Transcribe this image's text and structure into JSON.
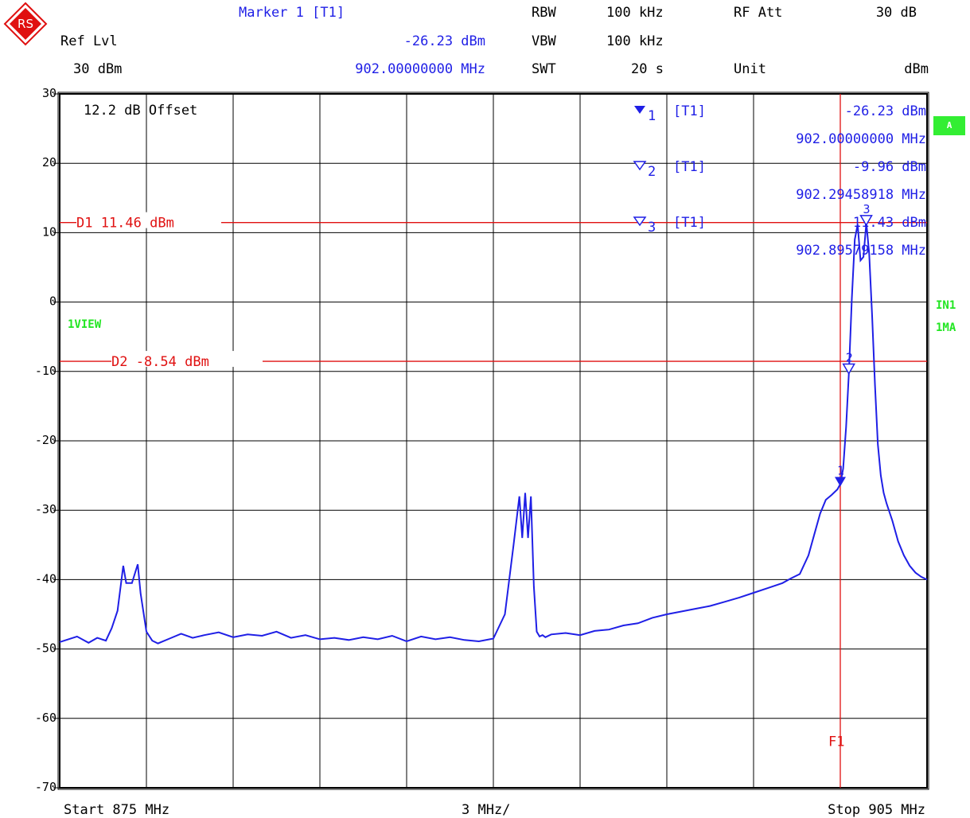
{
  "header": {
    "marker_title": "Marker 1 [T1]",
    "ref_lvl_label": "Ref Lvl",
    "marker_level": "-26.23 dBm",
    "ref_lvl_value": "30 dBm",
    "marker_freq": "902.00000000 MHz",
    "rbw_label": "RBW",
    "rbw_value": "100 kHz",
    "vbw_label": "VBW",
    "vbw_value": "100 kHz",
    "swt_label": "SWT",
    "swt_value": "20 s",
    "rf_att_label": "RF Att",
    "rf_att_value": "30 dB",
    "unit_label": "Unit",
    "unit_value": "dBm"
  },
  "side": {
    "a_badge": "A",
    "in1": "IN1",
    "ma1": "1MA",
    "view": "1VIEW"
  },
  "annotations": {
    "offset": "12.2 dB Offset",
    "d1": "D1 11.46 dBm",
    "d2": "D2 -8.54 dBm",
    "f1": "F1"
  },
  "marker_table": [
    {
      "num": "1",
      "trace": "[T1]",
      "level": "-26.23 dBm",
      "freq": "902.00000000 MHz"
    },
    {
      "num": "2",
      "trace": "[T1]",
      "level": "-9.96 dBm",
      "freq": "902.29458918 MHz"
    },
    {
      "num": "3",
      "trace": "[T1]",
      "level": "11.43 dBm",
      "freq": "902.89579158 MHz"
    }
  ],
  "footer": {
    "start": "Start 875 MHz",
    "div": "3 MHz/",
    "stop": "Stop 905 MHz"
  },
  "colors": {
    "trace": "#1f1fe6",
    "lines": "#e01010",
    "grid": "#000000",
    "status": "#22e622"
  },
  "chart_data": {
    "type": "line",
    "x_unit": "MHz",
    "y_unit": "dBm",
    "xlim": [
      875,
      905
    ],
    "ylim": [
      -70,
      30
    ],
    "yticks": [
      30,
      20,
      10,
      0,
      -10,
      -20,
      -30,
      -40,
      -50,
      -60,
      -70
    ],
    "grid": true,
    "hlines": [
      {
        "name": "D1",
        "value": 11.46
      },
      {
        "name": "D2",
        "value": -8.54
      }
    ],
    "vlines": [
      {
        "name": "F1",
        "value": 902.0
      }
    ],
    "markers": [
      {
        "id": "1",
        "x": 902.0,
        "y": -26.23,
        "filled": true
      },
      {
        "id": "2",
        "x": 902.29458918,
        "y": -9.96,
        "filled": false
      },
      {
        "id": "3",
        "x": 902.89579158,
        "y": 11.43,
        "filled": false
      }
    ],
    "series": [
      {
        "x": [
          875.0,
          875.3,
          875.6,
          876.0,
          876.3,
          876.6,
          876.8,
          877.0,
          877.2,
          877.3,
          877.5,
          877.7,
          877.8,
          878.0,
          878.2,
          878.4,
          878.8,
          879.2,
          879.6,
          880.0,
          880.5,
          881.0,
          881.5,
          882.0,
          882.5,
          883.0,
          883.5,
          884.0,
          884.5,
          885.0,
          885.5,
          886.0,
          886.5,
          887.0,
          887.5,
          888.0,
          888.5,
          889.0,
          889.5,
          890.0,
          890.4,
          890.7,
          890.9,
          891.0,
          891.1,
          891.2,
          891.3,
          891.4,
          891.5,
          891.6,
          891.7,
          891.8,
          892.0,
          892.5,
          893.0,
          893.5,
          894.0,
          894.5,
          895.0,
          895.5,
          896.0,
          896.5,
          897.0,
          897.5,
          898.0,
          898.5,
          899.0,
          899.5,
          900.0,
          900.3,
          900.6,
          900.9,
          901.1,
          901.3,
          901.5,
          901.7,
          901.9,
          902.0,
          902.1,
          902.2,
          902.3,
          902.4,
          902.5,
          902.6,
          902.7,
          902.8,
          902.9,
          903.0,
          903.1,
          903.2,
          903.3,
          903.4,
          903.5,
          903.6,
          903.8,
          904.0,
          904.2,
          904.4,
          904.6,
          904.8,
          905.0
        ],
        "y": [
          -49.0,
          -48.6,
          -48.2,
          -49.1,
          -48.4,
          -48.8,
          -47.0,
          -44.5,
          -38.0,
          -40.5,
          -40.5,
          -37.8,
          -42.0,
          -47.5,
          -48.8,
          -49.2,
          -48.5,
          -47.8,
          -48.4,
          -48.0,
          -47.6,
          -48.3,
          -47.9,
          -48.1,
          -47.5,
          -48.4,
          -48.0,
          -48.6,
          -48.4,
          -48.7,
          -48.3,
          -48.6,
          -48.1,
          -48.9,
          -48.2,
          -48.6,
          -48.3,
          -48.7,
          -48.9,
          -48.5,
          -45.0,
          -35.0,
          -28.0,
          -34.0,
          -27.5,
          -34.0,
          -28.0,
          -41.0,
          -47.5,
          -48.2,
          -48.0,
          -48.3,
          -47.9,
          -47.7,
          -48.0,
          -47.4,
          -47.2,
          -46.6,
          -46.3,
          -45.5,
          -45.0,
          -44.6,
          -44.2,
          -43.8,
          -43.2,
          -42.6,
          -41.9,
          -41.2,
          -40.5,
          -39.8,
          -39.2,
          -36.5,
          -33.5,
          -30.5,
          -28.5,
          -27.8,
          -27.0,
          -26.23,
          -24.0,
          -18.0,
          -9.96,
          0.5,
          9.0,
          11.2,
          6.0,
          6.5,
          11.43,
          7.0,
          -2.0,
          -12.0,
          -20.5,
          -25.0,
          -27.5,
          -29.0,
          -31.5,
          -34.5,
          -36.5,
          -38.0,
          -39.0,
          -39.6,
          -40.0
        ]
      }
    ]
  }
}
